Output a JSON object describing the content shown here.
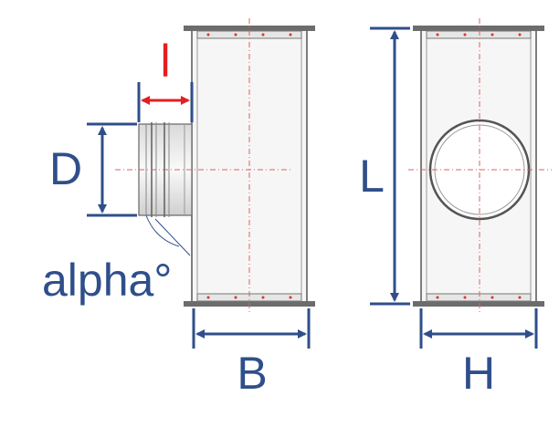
{
  "labels": {
    "l": "l",
    "d": "D",
    "alpha": "alpha°",
    "l_upper": "L",
    "b": "B",
    "h": "H"
  },
  "colors": {
    "dimension": "#2f4f8a",
    "length_arrow": "#e41f1f",
    "centerline": "#e06060",
    "outline": "#555555",
    "flange": "#6c6c6c",
    "fill": "#f4f4f4"
  }
}
